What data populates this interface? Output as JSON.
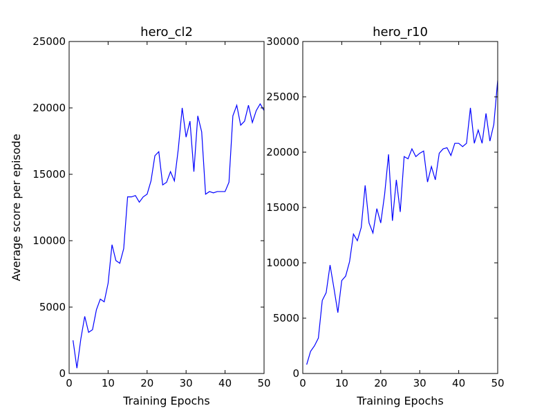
{
  "figure": {
    "ylabel": "Average score per episode",
    "line_color": "#0000ff"
  },
  "chart_data": [
    {
      "type": "line",
      "title": "hero_cl2",
      "xlabel": "Training Epochs",
      "ylabel": "Average score per episode",
      "xlim": [
        0,
        50
      ],
      "ylim": [
        0,
        25000
      ],
      "xticks": [
        "0",
        "10",
        "20",
        "30",
        "40",
        "50"
      ],
      "yticks": [
        "0",
        "5000",
        "10000",
        "15000",
        "20000",
        "25000"
      ],
      "grid": false,
      "series": [
        {
          "x": [
            1,
            2,
            3,
            4,
            5,
            6,
            7,
            8,
            9,
            10,
            11,
            12,
            13,
            14,
            15,
            16,
            17,
            18,
            19,
            20,
            21,
            22,
            23,
            24,
            25,
            26,
            27,
            28,
            29,
            30,
            31,
            32,
            33,
            34,
            35,
            36,
            37,
            38,
            39,
            40,
            41,
            42,
            43,
            44,
            45,
            46,
            47,
            48,
            49,
            50
          ],
          "y": [
            2500,
            400,
            2600,
            4300,
            3100,
            3300,
            4800,
            5600,
            5400,
            6800,
            9700,
            8500,
            8300,
            9400,
            13300,
            13300,
            13400,
            12900,
            13300,
            13500,
            14500,
            16400,
            16700,
            14200,
            14400,
            15200,
            14500,
            16900,
            20000,
            17800,
            19000,
            15200,
            19400,
            18200,
            13500,
            13700,
            13600,
            13700,
            13700,
            13700,
            14400,
            19400,
            20200,
            18700,
            19000,
            20200,
            18900,
            19800,
            20300,
            19800
          ]
        }
      ]
    },
    {
      "type": "line",
      "title": "hero_r10",
      "xlabel": "Training Epochs",
      "ylabel": "",
      "xlim": [
        0,
        50
      ],
      "ylim": [
        0,
        30000
      ],
      "xticks": [
        "0",
        "10",
        "20",
        "30",
        "40",
        "50"
      ],
      "yticks": [
        "0",
        "5000",
        "10000",
        "15000",
        "20000",
        "25000",
        "30000"
      ],
      "grid": false,
      "series": [
        {
          "x": [
            1,
            2,
            3,
            4,
            5,
            6,
            7,
            8,
            9,
            10,
            11,
            12,
            13,
            14,
            15,
            16,
            17,
            18,
            19,
            20,
            21,
            22,
            23,
            24,
            25,
            26,
            27,
            28,
            29,
            30,
            31,
            32,
            33,
            34,
            35,
            36,
            37,
            38,
            39,
            40,
            41,
            42,
            43,
            44,
            45,
            46,
            47,
            48,
            49,
            50
          ],
          "y": [
            800,
            2000,
            2500,
            3200,
            6600,
            7300,
            9800,
            7700,
            5500,
            8400,
            8800,
            10100,
            12600,
            12000,
            13200,
            17000,
            13600,
            12700,
            14900,
            13600,
            16200,
            19800,
            13800,
            17500,
            14600,
            19600,
            19400,
            20300,
            19600,
            19900,
            20100,
            17300,
            18700,
            17500,
            19900,
            20300,
            20400,
            19700,
            20800,
            20800,
            20500,
            20800,
            24000,
            20800,
            22000,
            20800,
            23500,
            21000,
            22500,
            26500
          ]
        }
      ]
    }
  ]
}
